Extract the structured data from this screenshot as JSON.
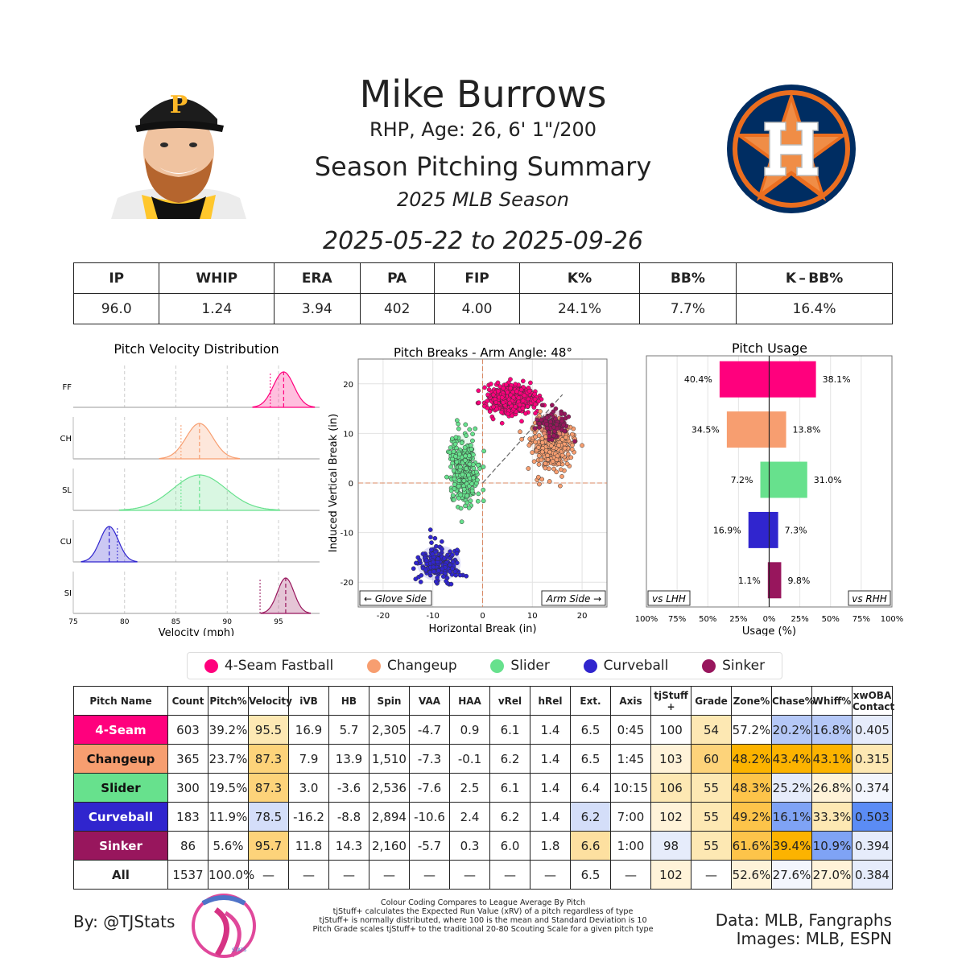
{
  "header": {
    "name": "Mike Burrows",
    "subtitle": "RHP, Age: 26, 6' 1\"/200",
    "report": "Season Pitching Summary",
    "season": "2025 MLB Season",
    "date_range": "2025-05-22 to 2025-09-26"
  },
  "colors": {
    "FF": "#ff007d",
    "CH": "#f79e70",
    "SL": "#67e18d",
    "CU": "#3025ce",
    "SI": "#98165d",
    "good": "#fcb300",
    "bad": "#5b8cf5",
    "team_navy": "#002d62",
    "team_orange": "#eb6e1f"
  },
  "summary": {
    "headers": [
      "IP",
      "WHIP",
      "ERA",
      "PA",
      "FIP",
      "K%",
      "BB%",
      "K – BB%"
    ],
    "values": [
      "96.0",
      "1.24",
      "3.94",
      "402",
      "4.00",
      "24.1%",
      "7.7%",
      "16.4%"
    ]
  },
  "legend": [
    {
      "name": "4-Seam Fastball",
      "key": "FF"
    },
    {
      "name": "Changeup",
      "key": "CH"
    },
    {
      "name": "Slider",
      "key": "SL"
    },
    {
      "name": "Curveball",
      "key": "CU"
    },
    {
      "name": "Sinker",
      "key": "SI"
    }
  ],
  "chart_data": [
    {
      "type": "area",
      "title": "Pitch Velocity Distribution",
      "xlabel": "Velocity (mph)",
      "xlim": [
        75,
        99
      ],
      "xticks": [
        75,
        80,
        85,
        90,
        95
      ],
      "series": [
        {
          "name": "FF",
          "key": "FF",
          "mean": 95.5,
          "sd": 1.0,
          "league": 94.2
        },
        {
          "name": "CH",
          "key": "CH",
          "mean": 87.3,
          "sd": 1.3,
          "league": 85.5
        },
        {
          "name": "SL",
          "key": "SL",
          "mean": 87.3,
          "sd": 2.6,
          "league": 85.5
        },
        {
          "name": "CU",
          "key": "CU",
          "mean": 78.5,
          "sd": 0.9,
          "league": 79.3
        },
        {
          "name": "SI",
          "key": "SI",
          "mean": 95.7,
          "sd": 0.8,
          "league": 93.2
        }
      ]
    },
    {
      "type": "scatter",
      "title": "Pitch Breaks - Arm Angle: 48°",
      "xlabel": "Horizontal Break (in)",
      "ylabel": "Induced Vertical Break (in)",
      "xlim": [
        -25,
        25
      ],
      "ylim": [
        -25,
        25
      ],
      "xticks": [
        -20,
        -10,
        0,
        10,
        20
      ],
      "yticks": [
        -20,
        -10,
        0,
        10,
        20
      ],
      "arm_angle": 48,
      "left_label": "← Glove Side",
      "right_label": "Arm Side →",
      "series": [
        {
          "name": "FF",
          "key": "FF",
          "hb": 5.7,
          "ivb": 16.9,
          "count": 603,
          "sd_hb": 2.2,
          "sd_ivb": 1.3
        },
        {
          "name": "CH",
          "key": "CH",
          "hb": 13.9,
          "ivb": 7.9,
          "count": 365,
          "sd_hb": 2.0,
          "sd_ivb": 2.5
        },
        {
          "name": "SL",
          "key": "SL",
          "hb": -3.6,
          "ivb": 3.0,
          "count": 300,
          "sd_hb": 1.3,
          "sd_ivb": 3.5
        },
        {
          "name": "CU",
          "key": "CU",
          "hb": -8.8,
          "ivb": -16.2,
          "count": 183,
          "sd_hb": 2.2,
          "sd_ivb": 1.8
        },
        {
          "name": "SI",
          "key": "SI",
          "hb": 14.3,
          "ivb": 11.8,
          "count": 86,
          "sd_hb": 1.4,
          "sd_ivb": 1.4
        }
      ]
    },
    {
      "type": "bar",
      "title": "Pitch Usage",
      "xlabel": "Usage (%)",
      "xlim": [
        -100,
        100
      ],
      "xticks": [
        "100%",
        "75%",
        "50%",
        "25%",
        "0%",
        "25%",
        "50%",
        "75%",
        "100%"
      ],
      "left_label": "vs LHH",
      "right_label": "vs RHH",
      "series": [
        {
          "name": "FF",
          "key": "FF",
          "lhh": 40.4,
          "rhh": 38.1
        },
        {
          "name": "CH",
          "key": "CH",
          "lhh": 34.5,
          "rhh": 13.8
        },
        {
          "name": "SL",
          "key": "SL",
          "lhh": 7.2,
          "rhh": 31.0
        },
        {
          "name": "CU",
          "key": "CU",
          "lhh": 16.9,
          "rhh": 7.3
        },
        {
          "name": "SI",
          "key": "SI",
          "lhh": 1.1,
          "rhh": 9.8
        }
      ]
    },
    {
      "type": "table",
      "columns": [
        "Pitch Name",
        "Count",
        "Pitch%",
        "Velocity",
        "iVB",
        "HB",
        "Spin",
        "VAA",
        "HAA",
        "vRel",
        "hRel",
        "Ext.",
        "Axis",
        "tjStuff +",
        "Grade",
        "Zone%",
        "Chase%",
        "Whiff%",
        "xwOBA\nContact"
      ],
      "rows": [
        {
          "key": "FF",
          "name": "4-Seam",
          "cells": [
            "603",
            "39.2%",
            "95.5",
            "16.9",
            "5.7",
            "2,305",
            "-4.7",
            "0.9",
            "6.1",
            "1.4",
            "6.5",
            "0:45",
            "100",
            "54",
            "57.2%",
            "20.2%",
            "16.8%",
            "0.405"
          ],
          "shade": [
            "",
            "",
            "#fde8b3",
            "",
            "",
            "",
            "",
            "",
            "",
            "",
            "",
            "",
            "",
            "#fde8b3",
            "",
            "#b5c8f7",
            "#b5c8f7",
            "#e6ecfb"
          ]
        },
        {
          "key": "CH",
          "name": "Changeup",
          "cells": [
            "365",
            "23.7%",
            "87.3",
            "7.9",
            "13.9",
            "1,510",
            "-7.3",
            "-0.1",
            "6.2",
            "1.4",
            "6.5",
            "1:45",
            "103",
            "60",
            "48.2%",
            "43.4%",
            "43.1%",
            "0.315"
          ],
          "shade": [
            "",
            "",
            "#fdd37a",
            "",
            "",
            "",
            "",
            "",
            "",
            "",
            "",
            "",
            "#fff3d9",
            "#fdd37a",
            "#fcb300",
            "#fcb300",
            "#fcb300",
            "#fde8b3"
          ]
        },
        {
          "key": "SL",
          "name": "Slider",
          "cells": [
            "300",
            "19.5%",
            "87.3",
            "3.0",
            "-3.6",
            "2,536",
            "-7.6",
            "2.5",
            "6.1",
            "1.4",
            "6.4",
            "10:15",
            "106",
            "55",
            "48.3%",
            "25.2%",
            "26.8%",
            "0.374"
          ],
          "shade": [
            "",
            "",
            "#fdd37a",
            "",
            "",
            "",
            "",
            "",
            "",
            "",
            "",
            "",
            "#fde8b3",
            "#fde8b3",
            "#fdc44a",
            "#e6ecfb",
            "#fff3d9",
            "#f3f6fd"
          ]
        },
        {
          "key": "CU",
          "name": "Curveball",
          "cells": [
            "183",
            "11.9%",
            "78.5",
            "-16.2",
            "-8.8",
            "2,894",
            "-10.6",
            "2.4",
            "6.2",
            "1.4",
            "6.2",
            "7:00",
            "102",
            "55",
            "49.2%",
            "16.1%",
            "33.3%",
            "0.503"
          ],
          "shade": [
            "",
            "",
            "#d4def9",
            "",
            "",
            "",
            "",
            "",
            "",
            "",
            "#d4def9",
            "",
            "#fff3d9",
            "#fde8b3",
            "#fdc44a",
            "#7fa3f5",
            "#fde8b3",
            "#5b8cf5"
          ]
        },
        {
          "key": "SI",
          "name": "Sinker",
          "cells": [
            "86",
            "5.6%",
            "95.7",
            "11.8",
            "14.3",
            "2,160",
            "-5.7",
            "0.3",
            "6.0",
            "1.8",
            "6.6",
            "1:00",
            "98",
            "55",
            "61.6%",
            "39.4%",
            "10.9%",
            "0.394"
          ],
          "shade": [
            "",
            "",
            "#fdd37a",
            "",
            "",
            "",
            "",
            "",
            "",
            "",
            "#fde0a0",
            "",
            "#e6ecfb",
            "#fde8b3",
            "#fdc44a",
            "#fcb300",
            "#7fa3f5",
            "#e6ecfb"
          ]
        },
        {
          "key": "ALL",
          "name": "All",
          "cells": [
            "1537",
            "100.0%",
            "—",
            "—",
            "—",
            "—",
            "—",
            "—",
            "—",
            "—",
            "6.5",
            "—",
            "102",
            "—",
            "52.6%",
            "27.6%",
            "27.0%",
            "0.384"
          ],
          "shade": [
            "",
            "",
            "",
            "",
            "",
            "",
            "",
            "",
            "",
            "",
            "",
            "",
            "#fff3d9",
            "",
            "#fff3d9",
            "#f3f6fd",
            "#fff3d9",
            "#e6ecfb"
          ]
        }
      ]
    }
  ],
  "footer": {
    "byline": "By: @TJStats",
    "notes": [
      "Colour Coding Compares to League Average By Pitch",
      "tjStuff+ calculates the Expected Run Value (xRV) of a pitch regardless of type",
      "tjStuff+ is normally distributed, where 100 is the mean and Standard Deviation is 10",
      "Pitch Grade scales tjStuff+ to the traditional 20-80 Scouting Scale for a given pitch type"
    ],
    "credits_1": "Data: MLB, Fangraphs",
    "credits_2": "Images: MLB, ESPN",
    "logo_text": "STATS"
  }
}
